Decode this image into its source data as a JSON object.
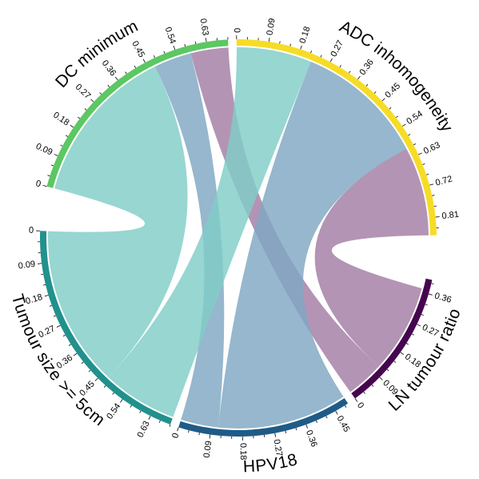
{
  "chart_data": {
    "type": "chord",
    "sectors": [
      {
        "name": "ADC inhomogeneity",
        "color": "#f7dc26",
        "max": 0.86,
        "ticks": [
          "0",
          "0.09",
          "0.18",
          "0.27",
          "0.36",
          "0.45",
          "0.54",
          "0.63",
          "0.72",
          "0.81"
        ]
      },
      {
        "name": "LN tumour ratio",
        "color": "#45064f",
        "max": 0.4,
        "ticks": [
          "0",
          "0.09",
          "0.18",
          "0.27",
          "0.36"
        ]
      },
      {
        "name": "HPV18",
        "color": "#1f5b87",
        "max": 0.49,
        "ticks": [
          "0",
          "0.09",
          "0.18",
          "0.27",
          "0.36",
          "0.45"
        ]
      },
      {
        "name": "Tumour size >= 5cm",
        "color": "#21918d",
        "max": 0.69,
        "ticks": [
          "0",
          "0.09",
          "0.18",
          "0.27",
          "0.36",
          "0.45",
          "0.54",
          "0.63"
        ]
      },
      {
        "name": "ADC minimum",
        "color": "#5cc763",
        "max": 0.69,
        "ticks": [
          "0",
          "0.09",
          "0.18",
          "0.27",
          "0.36",
          "0.45",
          "0.54",
          "0.63"
        ]
      }
    ],
    "links": [
      {
        "from": "ADC minimum",
        "to": "Tumour size >= 5cm",
        "value": 0.47,
        "color": "teal"
      },
      {
        "from": "ADC minimum",
        "to": "HPV18",
        "value": 0.11,
        "color": "steel"
      },
      {
        "from": "ADC minimum",
        "to": "LN tumour ratio",
        "value": 0.11,
        "color": "purple"
      },
      {
        "from": "ADC inhomogeneity",
        "to": "Tumour size >= 5cm",
        "value": 0.22,
        "color": "teal"
      },
      {
        "from": "ADC inhomogeneity",
        "to": "HPV18",
        "value": 0.38,
        "color": "steel"
      },
      {
        "from": "ADC inhomogeneity",
        "to": "LN tumour ratio",
        "value": 0.26,
        "color": "purple"
      }
    ],
    "link_colors": {
      "teal": "#80cdc7",
      "steel": "#7fa7c2",
      "purple": "#a27da4"
    }
  }
}
